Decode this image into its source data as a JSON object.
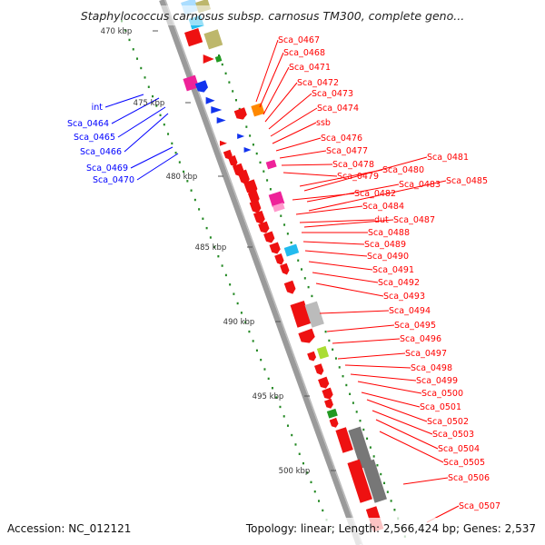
{
  "title": "Staphylococcus carnosus subsp. carnosus TM300, complete geno...",
  "footer": {
    "accession": "Accession: NC_012121",
    "topology": "Topology: linear; Length: 2,566,424 bp; Genes: 2,537"
  },
  "colors": {
    "red": "#ff0000",
    "blue": "#0000ff",
    "backbone": "#999999",
    "kbp_ticks": "#228822",
    "feature_fills": {
      "red": "#ee1111",
      "khaki": "#bdb76b",
      "lightblue": "#aaddff",
      "magenta": "#ee2299",
      "orange": "#ff8800",
      "cyan": "#22bbee",
      "silver": "#bbbbbb",
      "grey": "#777777",
      "lime": "#aadd33",
      "green": "#229922",
      "pink": "#ff99cc",
      "blue": "#1133ee"
    }
  },
  "scale": [
    {
      "label": "470 kbp"
    },
    {
      "label": "475 kbp"
    },
    {
      "label": "480 kbp"
    },
    {
      "label": "485 kbp"
    },
    {
      "label": "490 kbp"
    },
    {
      "label": "495 kbp"
    },
    {
      "label": "500 kbp"
    }
  ],
  "genes_left": [
    {
      "name": "int",
      "color": "blue"
    },
    {
      "name": "Sca_0464",
      "color": "blue"
    },
    {
      "name": "Sca_0465",
      "color": "blue"
    },
    {
      "name": "Sca_0466",
      "color": "blue"
    },
    {
      "name": "Sca_0469",
      "color": "blue"
    },
    {
      "name": "Sca_0470",
      "color": "blue"
    }
  ],
  "genes_right": [
    {
      "name": "Sca_0467"
    },
    {
      "name": "Sca_0468"
    },
    {
      "name": "Sca_0471"
    },
    {
      "name": "Sca_0472"
    },
    {
      "name": "Sca_0473"
    },
    {
      "name": "Sca_0474"
    },
    {
      "name": "ssb"
    },
    {
      "name": "Sca_0476"
    },
    {
      "name": "Sca_0477"
    },
    {
      "name": "Sca_0478"
    },
    {
      "name": "Sca_0479"
    },
    {
      "name": "Sca_0480"
    },
    {
      "name": "Sca_0481"
    },
    {
      "name": "Sca_0482"
    },
    {
      "name": "Sca_0483"
    },
    {
      "name": "Sca_0485"
    },
    {
      "name": "Sca_0484"
    },
    {
      "name": "dut"
    },
    {
      "name": "Sca_0487"
    },
    {
      "name": "Sca_0488"
    },
    {
      "name": "Sca_0489"
    },
    {
      "name": "Sca_0490"
    },
    {
      "name": "Sca_0491"
    },
    {
      "name": "Sca_0492"
    },
    {
      "name": "Sca_0493"
    },
    {
      "name": "Sca_0494"
    },
    {
      "name": "Sca_0495"
    },
    {
      "name": "Sca_0496"
    },
    {
      "name": "Sca_0497"
    },
    {
      "name": "Sca_0498"
    },
    {
      "name": "Sca_0499"
    },
    {
      "name": "Sca_0500"
    },
    {
      "name": "Sca_0501"
    },
    {
      "name": "Sca_0502"
    },
    {
      "name": "Sca_0503"
    },
    {
      "name": "Sca_0504"
    },
    {
      "name": "Sca_0505"
    },
    {
      "name": "Sca_0506"
    },
    {
      "name": "Sca_0507"
    }
  ]
}
